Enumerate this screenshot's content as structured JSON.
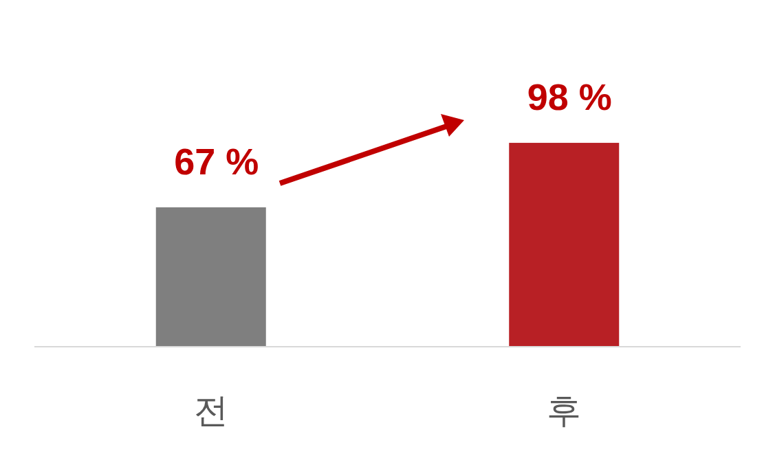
{
  "chart_data": {
    "type": "bar",
    "categories": [
      "전",
      "후"
    ],
    "values": [
      67,
      98
    ],
    "value_labels": [
      "67 %",
      "98 %"
    ],
    "colors": [
      "#7f7f7f",
      "#b82025"
    ],
    "ylim": [
      0,
      100
    ],
    "grid": false,
    "data_labels": true,
    "tick_labels": "x"
  }
}
